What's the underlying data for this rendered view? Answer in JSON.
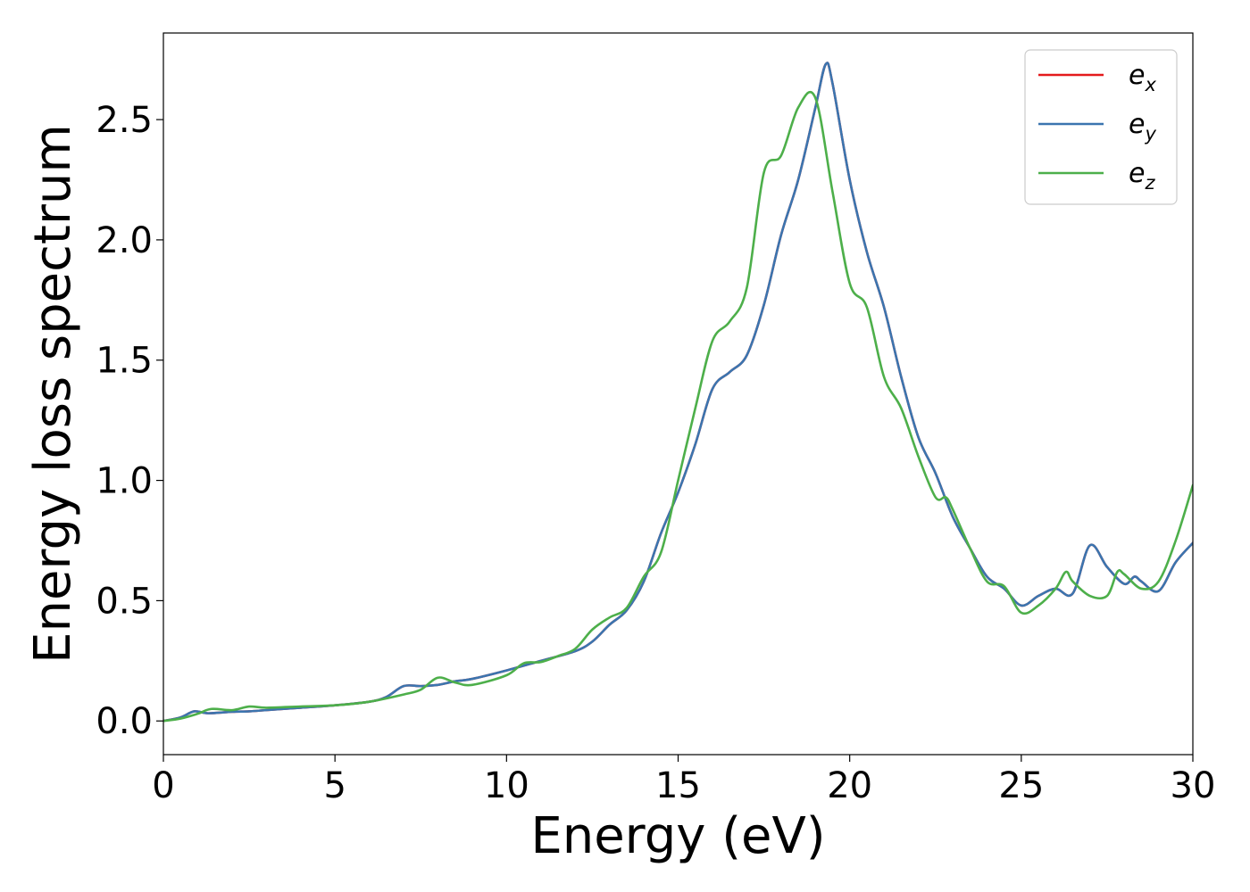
{
  "chart_data": {
    "type": "line",
    "xlabel": "Energy (eV)",
    "ylabel": "Energy loss spectrum",
    "xlim": [
      0,
      30
    ],
    "ylim": [
      -0.14,
      2.86
    ],
    "xticks": [
      "0",
      "5",
      "10",
      "15",
      "20",
      "25",
      "30"
    ],
    "yticks": [
      "0.0",
      "0.5",
      "1.0",
      "1.5",
      "2.0",
      "2.5"
    ],
    "grid": false,
    "legend_position": "top-right",
    "series": [
      {
        "name": "e_x",
        "legend_base": "e",
        "legend_sub": "x",
        "color": "#e41a1c",
        "x": [
          0,
          0.5,
          0.9,
          1.3,
          2,
          2.5,
          3,
          4,
          5,
          6,
          6.5,
          7,
          7.5,
          8,
          8.5,
          9,
          10,
          11,
          12,
          12.5,
          13,
          13.5,
          14,
          14.5,
          15,
          15.5,
          16,
          16.5,
          17,
          17.5,
          18,
          18.5,
          19,
          19.3,
          19.5,
          20,
          20.5,
          21,
          21.5,
          22,
          22.5,
          23,
          23.5,
          24,
          24.5,
          25,
          25.5,
          26,
          26.5,
          27,
          27.5,
          28,
          28.3,
          28.5,
          29,
          29.5,
          30
        ],
        "y": [
          0,
          0.015,
          0.04,
          0.032,
          0.038,
          0.04,
          0.045,
          0.055,
          0.065,
          0.08,
          0.1,
          0.145,
          0.145,
          0.15,
          0.165,
          0.175,
          0.21,
          0.25,
          0.29,
          0.33,
          0.4,
          0.46,
          0.58,
          0.78,
          0.95,
          1.15,
          1.38,
          1.45,
          1.52,
          1.73,
          2.02,
          2.25,
          2.55,
          2.73,
          2.65,
          2.25,
          1.95,
          1.72,
          1.43,
          1.18,
          1.03,
          0.85,
          0.72,
          0.6,
          0.55,
          0.48,
          0.52,
          0.55,
          0.53,
          0.73,
          0.64,
          0.57,
          0.6,
          0.58,
          0.54,
          0.66,
          0.74
        ]
      },
      {
        "name": "e_y",
        "legend_base": "e",
        "legend_sub": "y",
        "color": "#3b75af",
        "x": [
          0,
          0.5,
          0.9,
          1.3,
          2,
          2.5,
          3,
          4,
          5,
          6,
          6.5,
          7,
          7.5,
          8,
          8.5,
          9,
          10,
          11,
          12,
          12.5,
          13,
          13.5,
          14,
          14.5,
          15,
          15.5,
          16,
          16.5,
          17,
          17.5,
          18,
          18.5,
          19,
          19.3,
          19.5,
          20,
          20.5,
          21,
          21.5,
          22,
          22.5,
          23,
          23.5,
          24,
          24.5,
          25,
          25.5,
          26,
          26.5,
          27,
          27.5,
          28,
          28.3,
          28.5,
          29,
          29.5,
          30
        ],
        "y": [
          0,
          0.015,
          0.04,
          0.032,
          0.038,
          0.04,
          0.045,
          0.055,
          0.065,
          0.08,
          0.1,
          0.145,
          0.145,
          0.15,
          0.165,
          0.175,
          0.21,
          0.25,
          0.29,
          0.33,
          0.4,
          0.46,
          0.58,
          0.78,
          0.95,
          1.15,
          1.38,
          1.45,
          1.52,
          1.73,
          2.02,
          2.25,
          2.55,
          2.73,
          2.65,
          2.25,
          1.95,
          1.72,
          1.43,
          1.18,
          1.03,
          0.85,
          0.72,
          0.6,
          0.55,
          0.48,
          0.52,
          0.55,
          0.53,
          0.73,
          0.64,
          0.57,
          0.6,
          0.58,
          0.54,
          0.66,
          0.74
        ]
      },
      {
        "name": "e_z",
        "legend_base": "e",
        "legend_sub": "z",
        "color": "#4daf4a",
        "x": [
          0,
          0.5,
          1,
          1.4,
          2,
          2.5,
          3,
          4,
          5,
          6,
          7,
          7.5,
          8,
          8.5,
          9,
          10,
          10.5,
          11,
          11.5,
          12,
          12.5,
          13,
          13.5,
          14,
          14.5,
          15,
          15.5,
          16,
          16.5,
          17,
          17.5,
          18,
          18.5,
          19,
          19.5,
          20,
          20.5,
          21,
          21.5,
          22,
          22.5,
          22.8,
          23,
          23.5,
          24,
          24.5,
          25,
          25.5,
          26,
          26.3,
          26.5,
          27,
          27.5,
          27.8,
          28,
          28.5,
          29,
          29.5,
          30
        ],
        "y": [
          0,
          0.01,
          0.03,
          0.05,
          0.045,
          0.06,
          0.055,
          0.06,
          0.065,
          0.08,
          0.11,
          0.13,
          0.18,
          0.16,
          0.15,
          0.19,
          0.24,
          0.245,
          0.27,
          0.3,
          0.38,
          0.43,
          0.47,
          0.6,
          0.7,
          1.0,
          1.3,
          1.58,
          1.66,
          1.8,
          2.28,
          2.35,
          2.55,
          2.59,
          2.2,
          1.82,
          1.72,
          1.43,
          1.3,
          1.1,
          0.93,
          0.93,
          0.88,
          0.72,
          0.58,
          0.56,
          0.45,
          0.48,
          0.55,
          0.62,
          0.58,
          0.52,
          0.52,
          0.62,
          0.61,
          0.55,
          0.58,
          0.75,
          0.98
        ]
      }
    ]
  }
}
